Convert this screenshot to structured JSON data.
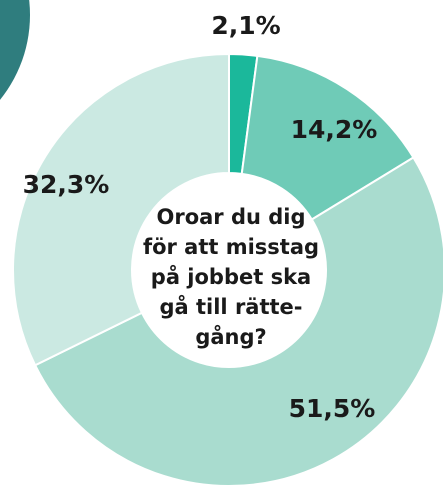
{
  "chart_data": {
    "type": "donut",
    "title_lines": [
      "Oroar du dig",
      "för att misstag",
      "på jobbet ska",
      "gå till rätte-",
      "gång?"
    ],
    "categories": [
      null,
      null,
      null,
      null
    ],
    "values": [
      2.1,
      14.2,
      51.5,
      32.3
    ],
    "value_labels": [
      "2,1%",
      "14,2%",
      "51,5%",
      "32,3%"
    ],
    "colors": [
      "#1bb89b",
      "#6fcbb7",
      "#a9dccf",
      "#cbe9e2"
    ]
  }
}
